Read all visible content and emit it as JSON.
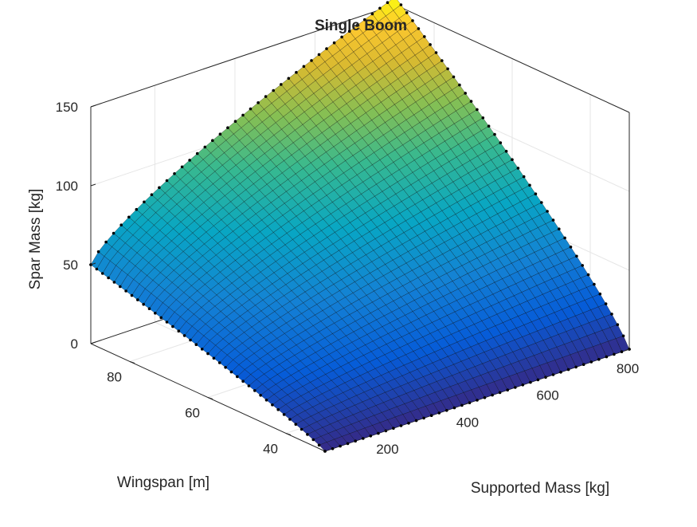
{
  "chart_data": {
    "type": "surface",
    "title": "Single Boom",
    "xlabel": "Supported Mass [kg]",
    "ylabel": "Wingspan [m]",
    "zlabel": "Spar Mass [kg]",
    "xlim": [
      40,
      800
    ],
    "ylim": [
      30,
      90
    ],
    "zlim": [
      0,
      150
    ],
    "x_ticks": [
      "200",
      "400",
      "600",
      "800"
    ],
    "y_ticks": [
      "40",
      "60",
      "80"
    ],
    "z_ticks": [
      "0",
      "50",
      "100",
      "150"
    ],
    "grid": true,
    "colormap": "parula",
    "edge_color": "#000000",
    "marker": "point",
    "corner_values": [
      {
        "x": 40,
        "y": 30,
        "z": 0
      },
      {
        "x": 800,
        "y": 30,
        "z": 0
      },
      {
        "x": 40,
        "y": 90,
        "z": 50
      },
      {
        "x": 800,
        "y": 90,
        "z": 155
      }
    ],
    "grid_resolution": [
      40,
      40
    ],
    "colors": {
      "axis": "#262626",
      "grid": "#e6e6e6",
      "background": "#ffffff"
    }
  }
}
